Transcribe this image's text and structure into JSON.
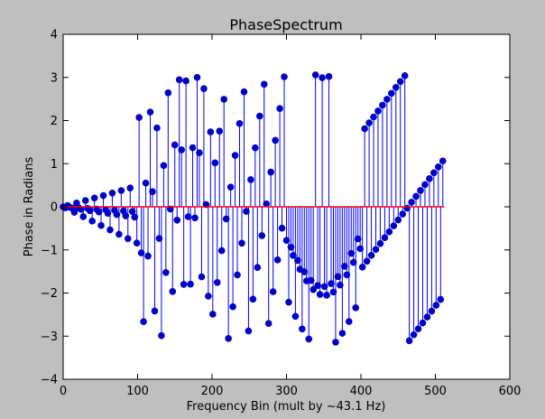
{
  "chart_data": {
    "type": "stem",
    "title": "PhaseSpectrum",
    "xlabel": "Frequency Bin (mult by ~43.1 Hz)",
    "ylabel": "Phase in Radians",
    "xlim": [
      0,
      600
    ],
    "ylim": [
      -4,
      4
    ],
    "x_ticks": [
      "0",
      "100",
      "200",
      "300",
      "400",
      "500",
      "600"
    ],
    "y_ticks": [
      "4",
      "3",
      "2",
      "1",
      "0",
      "−1",
      "−2",
      "−3",
      "−4"
    ],
    "grid": false,
    "legend": "none",
    "x_range": [
      0,
      512
    ],
    "colors": {
      "stems": "#0000ff",
      "markers": "#0000cc",
      "baseline": "#ff0000",
      "axes_bg": "#ffffff",
      "figure_bg": "#bfbfbf"
    }
  }
}
